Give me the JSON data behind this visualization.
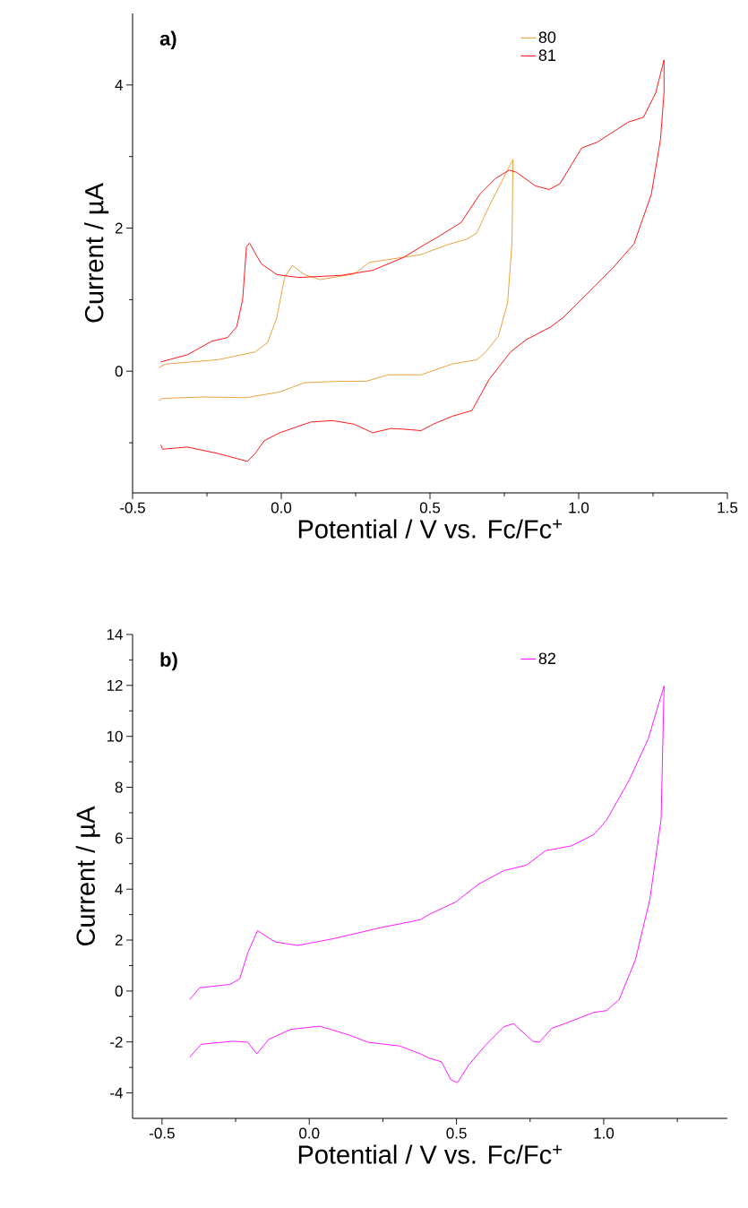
{
  "chart_data": [
    {
      "type": "line",
      "xlabel": "Potential / V vs. Fc/Fc$^{+}$",
      "ylabel": "Current / µA",
      "annotations": [
        "a)"
      ],
      "legend": "top right",
      "xlim": [
        -0.5,
        1.5
      ],
      "ylim": [
        -1.7,
        5
      ],
      "xticks": [
        {
          "value": -0.5,
          "label": "-0.5"
        },
        {
          "value": -0.25,
          "label": null
        },
        {
          "value": 0,
          "label": "0.0"
        },
        {
          "value": 0.25,
          "label": null
        },
        {
          "value": 0.5,
          "label": "0.5"
        },
        {
          "value": 0.75,
          "label": null
        },
        {
          "value": 1,
          "label": "1.0"
        },
        {
          "value": 1.25,
          "label": null
        },
        {
          "value": 1.5,
          "label": "1.5"
        }
      ],
      "yticks": [
        {
          "value": -1,
          "label": null
        },
        0,
        {
          "value": 1,
          "label": null
        },
        2,
        {
          "value": 3,
          "label": null
        },
        4
      ],
      "series": [
        {
          "name": "80",
          "color": "#e8962a",
          "x": [
            -0.412,
            -0.389,
            -0.213,
            -0.088,
            -0.046,
            -0.015,
            0.011,
            0.037,
            0.078,
            0.13,
            0.245,
            0.296,
            0.359,
            0.47,
            0.553,
            0.626,
            0.657,
            0.698,
            0.74,
            0.779,
            0.776,
            0.761,
            0.73,
            0.688,
            0.657,
            0.574,
            0.47,
            0.359,
            0.286,
            0.203,
            0.078,
            -0.005,
            -0.119,
            -0.264,
            -0.399,
            -0.412
          ],
          "values": [
            0.05,
            0.1,
            0.16,
            0.27,
            0.4,
            0.75,
            1.31,
            1.48,
            1.35,
            1.28,
            1.36,
            1.52,
            1.56,
            1.63,
            1.76,
            1.85,
            1.93,
            2.3,
            2.64,
            2.96,
            1.82,
            0.96,
            0.49,
            0.27,
            0.16,
            0.1,
            -0.05,
            -0.05,
            -0.14,
            -0.14,
            -0.16,
            -0.29,
            -0.37,
            -0.36,
            -0.38,
            -0.41
          ]
        },
        {
          "name": "81",
          "color": "#ff0000",
          "x": [
            -0.405,
            -0.316,
            -0.233,
            -0.181,
            -0.15,
            -0.13,
            -0.117,
            -0.107,
            -0.067,
            -0.015,
            0.058,
            0.203,
            0.307,
            0.411,
            0.47,
            0.532,
            0.605,
            0.667,
            0.719,
            0.766,
            0.791,
            0.854,
            0.901,
            0.937,
            1.01,
            1.062,
            1.166,
            1.218,
            1.259,
            1.287,
            1.287,
            1.275,
            1.244,
            1.186,
            1.114,
            1.052,
            0.989,
            0.948,
            0.906,
            0.823,
            0.771,
            0.698,
            0.641,
            0.574,
            0.511,
            0.47,
            0.411,
            0.369,
            0.307,
            0.245,
            0.172,
            0.099,
            -0.005,
            -0.057,
            -0.088,
            -0.114,
            -0.15,
            -0.213,
            -0.316,
            -0.399,
            -0.405
          ],
          "values": [
            0.13,
            0.23,
            0.42,
            0.47,
            0.62,
            1.0,
            1.74,
            1.79,
            1.5,
            1.35,
            1.31,
            1.34,
            1.41,
            1.59,
            1.74,
            1.89,
            2.08,
            2.47,
            2.69,
            2.81,
            2.78,
            2.59,
            2.54,
            2.62,
            3.12,
            3.2,
            3.48,
            3.55,
            3.89,
            4.35,
            3.89,
            3.24,
            2.47,
            1.78,
            1.44,
            1.18,
            0.92,
            0.75,
            0.62,
            0.44,
            0.27,
            -0.12,
            -0.55,
            -0.63,
            -0.74,
            -0.83,
            -0.81,
            -0.8,
            -0.86,
            -0.74,
            -0.69,
            -0.71,
            -0.86,
            -0.97,
            -1.15,
            -1.26,
            -1.22,
            -1.15,
            -1.06,
            -1.09,
            -1.03
          ]
        }
      ]
    },
    {
      "type": "line",
      "xlabel": "Potential / V vs. Fc/Fc$^{+}$",
      "ylabel": "Current / µA",
      "annotations": [
        "b)"
      ],
      "legend": "top right",
      "xlim": [
        -0.6,
        1.42
      ],
      "ylim": [
        -5,
        14
      ],
      "xticks": [
        {
          "value": -0.5,
          "label": "-0.5"
        },
        {
          "value": -0.25,
          "label": null
        },
        {
          "value": 0,
          "label": "0.0"
        },
        {
          "value": 0.25,
          "label": null
        },
        {
          "value": 0.5,
          "label": "0.5"
        },
        {
          "value": 0.75,
          "label": null
        },
        {
          "value": 1,
          "label": "1.0"
        },
        {
          "value": 1.25,
          "label": null
        }
      ],
      "yticks": [
        -4,
        {
          "value": -3,
          "label": null
        },
        -2,
        {
          "value": -1,
          "label": null
        },
        0,
        {
          "value": 1,
          "label": null
        },
        2,
        {
          "value": 3,
          "label": null
        },
        4,
        {
          "value": 5,
          "label": null
        },
        6,
        {
          "value": 7,
          "label": null
        },
        8,
        {
          "value": 9,
          "label": null
        },
        10,
        {
          "value": 11,
          "label": null
        },
        12,
        {
          "value": 13,
          "label": null
        },
        14
      ],
      "series": [
        {
          "name": "82",
          "color": "#ff00ff",
          "x": [
            -0.406,
            -0.372,
            -0.269,
            -0.236,
            -0.209,
            -0.176,
            -0.116,
            -0.04,
            0.08,
            0.243,
            0.352,
            0.378,
            0.406,
            0.498,
            0.574,
            0.661,
            0.737,
            0.803,
            0.89,
            0.966,
            1.009,
            1.086,
            1.151,
            1.205,
            1.195,
            1.157,
            1.108,
            1.053,
            1.009,
            0.966,
            0.868,
            0.824,
            0.781,
            0.759,
            0.694,
            0.661,
            0.596,
            0.541,
            0.503,
            0.481,
            0.449,
            0.406,
            0.378,
            0.308,
            0.199,
            0.134,
            0.036,
            -0.062,
            -0.138,
            -0.178,
            -0.209,
            -0.258,
            -0.367,
            -0.406
          ],
          "values": [
            -0.33,
            0.13,
            0.26,
            0.48,
            1.49,
            2.37,
            1.93,
            1.79,
            2.05,
            2.49,
            2.74,
            2.81,
            3.0,
            3.5,
            4.19,
            4.73,
            4.94,
            5.51,
            5.7,
            6.14,
            6.7,
            8.27,
            9.9,
            11.98,
            6.76,
            3.62,
            1.24,
            -0.33,
            -0.77,
            -0.84,
            -1.28,
            -1.46,
            -2.01,
            -1.97,
            -1.28,
            -1.4,
            -2.16,
            -2.91,
            -3.6,
            -3.48,
            -2.78,
            -2.63,
            -2.47,
            -2.16,
            -2.01,
            -1.72,
            -1.38,
            -1.5,
            -1.9,
            -2.47,
            -2.01,
            -1.97,
            -2.09,
            -2.6
          ]
        }
      ]
    }
  ]
}
